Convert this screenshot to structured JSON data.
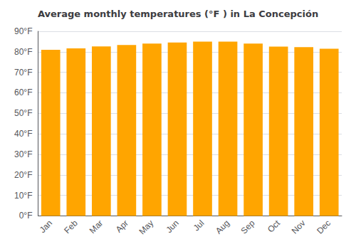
{
  "chart_data": {
    "type": "bar",
    "title": "Average monthly temperatures (°F ) in La Concepción",
    "categories": [
      "Jan",
      "Feb",
      "Mar",
      "Apr",
      "May",
      "Jun",
      "Jul",
      "Aug",
      "Sep",
      "Oct",
      "Nov",
      "Dec"
    ],
    "values": [
      81.0,
      81.7,
      82.6,
      83.3,
      84.0,
      84.5,
      85.0,
      85.0,
      84.0,
      82.5,
      82.3,
      81.5
    ],
    "color": "#FFA500",
    "ylim": [
      0,
      90
    ],
    "yticks": [
      {
        "value": 0,
        "label": "0°F"
      },
      {
        "value": 10,
        "label": "10°F"
      },
      {
        "value": 20,
        "label": "20°F"
      },
      {
        "value": 30,
        "label": "30°F"
      },
      {
        "value": 40,
        "label": "40°F"
      },
      {
        "value": 50,
        "label": "50°F"
      },
      {
        "value": 60,
        "label": "60°F"
      },
      {
        "value": 70,
        "label": "70°F"
      },
      {
        "value": 80,
        "label": "80°F"
      },
      {
        "value": 90,
        "label": "90°F"
      }
    ],
    "grid": true
  }
}
